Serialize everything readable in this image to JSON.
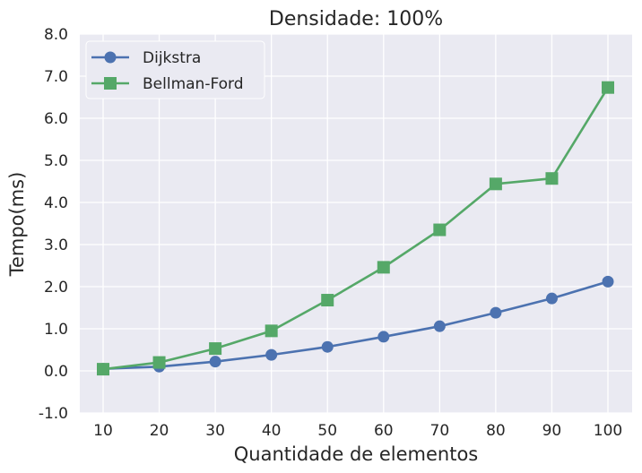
{
  "chart_data": {
    "type": "line",
    "title": "Densidade: 100%",
    "xlabel": "Quantidade de elementos",
    "ylabel": "Tempo(ms)",
    "x": [
      10,
      20,
      30,
      40,
      50,
      60,
      70,
      80,
      90,
      100
    ],
    "x_tick_labels": [
      "10",
      "20",
      "30",
      "40",
      "50",
      "60",
      "70",
      "80",
      "90",
      "100"
    ],
    "y_ticks": [
      -1.0,
      0.0,
      1.0,
      2.0,
      3.0,
      4.0,
      5.0,
      6.0,
      7.0,
      8.0
    ],
    "y_tick_labels": [
      "-1.0",
      "0.0",
      "1.0",
      "2.0",
      "3.0",
      "4.0",
      "5.0",
      "6.0",
      "7.0",
      "8.0"
    ],
    "ylim": [
      -1.0,
      8.0
    ],
    "grid": true,
    "legend_position": "top-left",
    "series": [
      {
        "name": "Dijkstra",
        "marker": "circle",
        "color": "#4C72B0",
        "values": [
          0.05,
          0.1,
          0.22,
          0.38,
          0.57,
          0.81,
          1.06,
          1.38,
          1.72,
          2.12
        ]
      },
      {
        "name": "Bellman-Ford",
        "marker": "square",
        "color": "#55A868",
        "values": [
          0.04,
          0.2,
          0.53,
          0.95,
          1.68,
          2.46,
          3.35,
          4.44,
          4.57,
          6.73
        ]
      }
    ],
    "background_color": "#EAEAF2",
    "grid_color": "#FFFFFF"
  }
}
